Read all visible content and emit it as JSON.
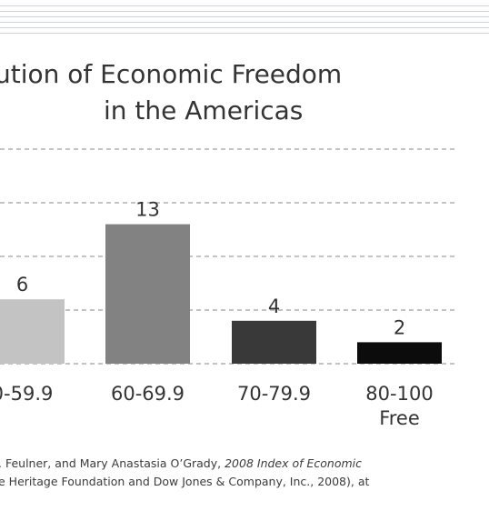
{
  "chart_data": {
    "type": "bar",
    "title_line1": "ution of Economic Freedom",
    "title_line2": "in the Americas",
    "categories": [
      "0-59.9",
      "60-69.9",
      "70-79.9",
      "80-100"
    ],
    "category_sublabels": [
      "",
      "",
      "",
      "Free"
    ],
    "values": [
      6,
      13,
      4,
      2
    ],
    "colors": [
      "#c3c3c3",
      "#828282",
      "#393939",
      "#0c0c0c"
    ],
    "ylim": [
      0,
      20
    ],
    "grid": true,
    "grid_style": "dashed"
  },
  "source": {
    "line1_prefix": ". Feulner, and Mary Anastasia O’Grady, ",
    "line1_italic": "2008 Index of Economic",
    "line2": "e Heritage Foundation and Dow Jones & Company, Inc., 2008), at"
  }
}
